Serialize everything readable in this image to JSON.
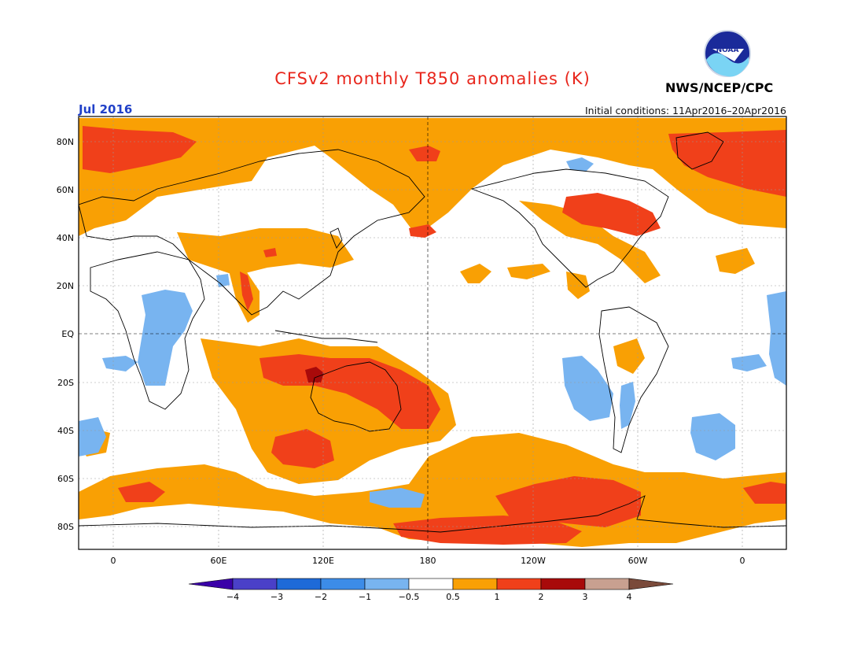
{
  "header": {
    "title": "CFSv2 monthly T850 anomalies (K)",
    "agency": "NWS/NCEP/CPC",
    "logo_text": "NOAA",
    "month": "Jul 2016",
    "initial_conditions": "Initial conditions: 11Apr2016–20Apr2016"
  },
  "map": {
    "lat_labels": [
      "80N",
      "60N",
      "40N",
      "20N",
      "EQ",
      "20S",
      "40S",
      "60S",
      "80S"
    ],
    "lon_labels": [
      "0",
      "60E",
      "120E",
      "180",
      "120W",
      "60W",
      "0"
    ],
    "colors": {
      "ocean": "#ffffff",
      "coast": "#000000",
      "anom_pos_1": "#f9a004",
      "anom_pos_2": "#f0401a",
      "anom_pos_3": "#a80a0a",
      "anom_neg_1": "#78b4f0"
    }
  },
  "colorbar": {
    "labels": [
      "−4",
      "−3",
      "−2",
      "−1",
      "−0.5",
      "0.5",
      "1",
      "2",
      "3",
      "4"
    ],
    "colors": [
      "#3a00a8",
      "#4a40c8",
      "#1e6ad8",
      "#3c8ce8",
      "#78b4f0",
      "#ffffff",
      "#f9a004",
      "#f0401a",
      "#a80a0a",
      "#c8a090",
      "#7a4a3a"
    ]
  }
}
